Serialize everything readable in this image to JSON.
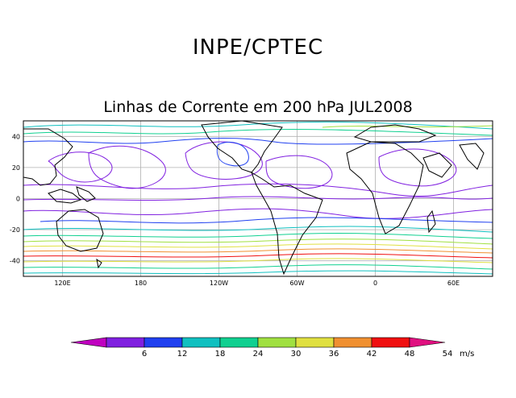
{
  "header": {
    "title": "INPE/CPTEC"
  },
  "map": {
    "title": "Linhas de Corrente em 200 hPa JUL2008",
    "lat_ticks": [
      {
        "value": 40,
        "label": "40"
      },
      {
        "value": 20,
        "label": "20"
      },
      {
        "value": 0,
        "label": "0"
      },
      {
        "value": -20,
        "label": "-20"
      },
      {
        "value": -40,
        "label": "-40"
      }
    ],
    "lon_ticks": [
      {
        "value": 120,
        "label": "120E"
      },
      {
        "value": 180,
        "label": "180"
      },
      {
        "value": 240,
        "label": "120W"
      },
      {
        "value": 300,
        "label": "60W"
      },
      {
        "value": 360,
        "label": "0"
      },
      {
        "value": 420,
        "label": "60E"
      }
    ],
    "extent": {
      "lon_min": 90,
      "lon_max": 450,
      "lat_min": -50,
      "lat_max": 50
    }
  },
  "colorbar": {
    "unit": "m/s",
    "ticks": [
      "6",
      "12",
      "18",
      "24",
      "30",
      "36",
      "42",
      "48",
      "54"
    ],
    "colors": [
      "#c000c0",
      "#8020e0",
      "#2040f0",
      "#10c0c0",
      "#10d090",
      "#a0e040",
      "#e0e040",
      "#f09030",
      "#f01010",
      "#e01080"
    ]
  }
}
